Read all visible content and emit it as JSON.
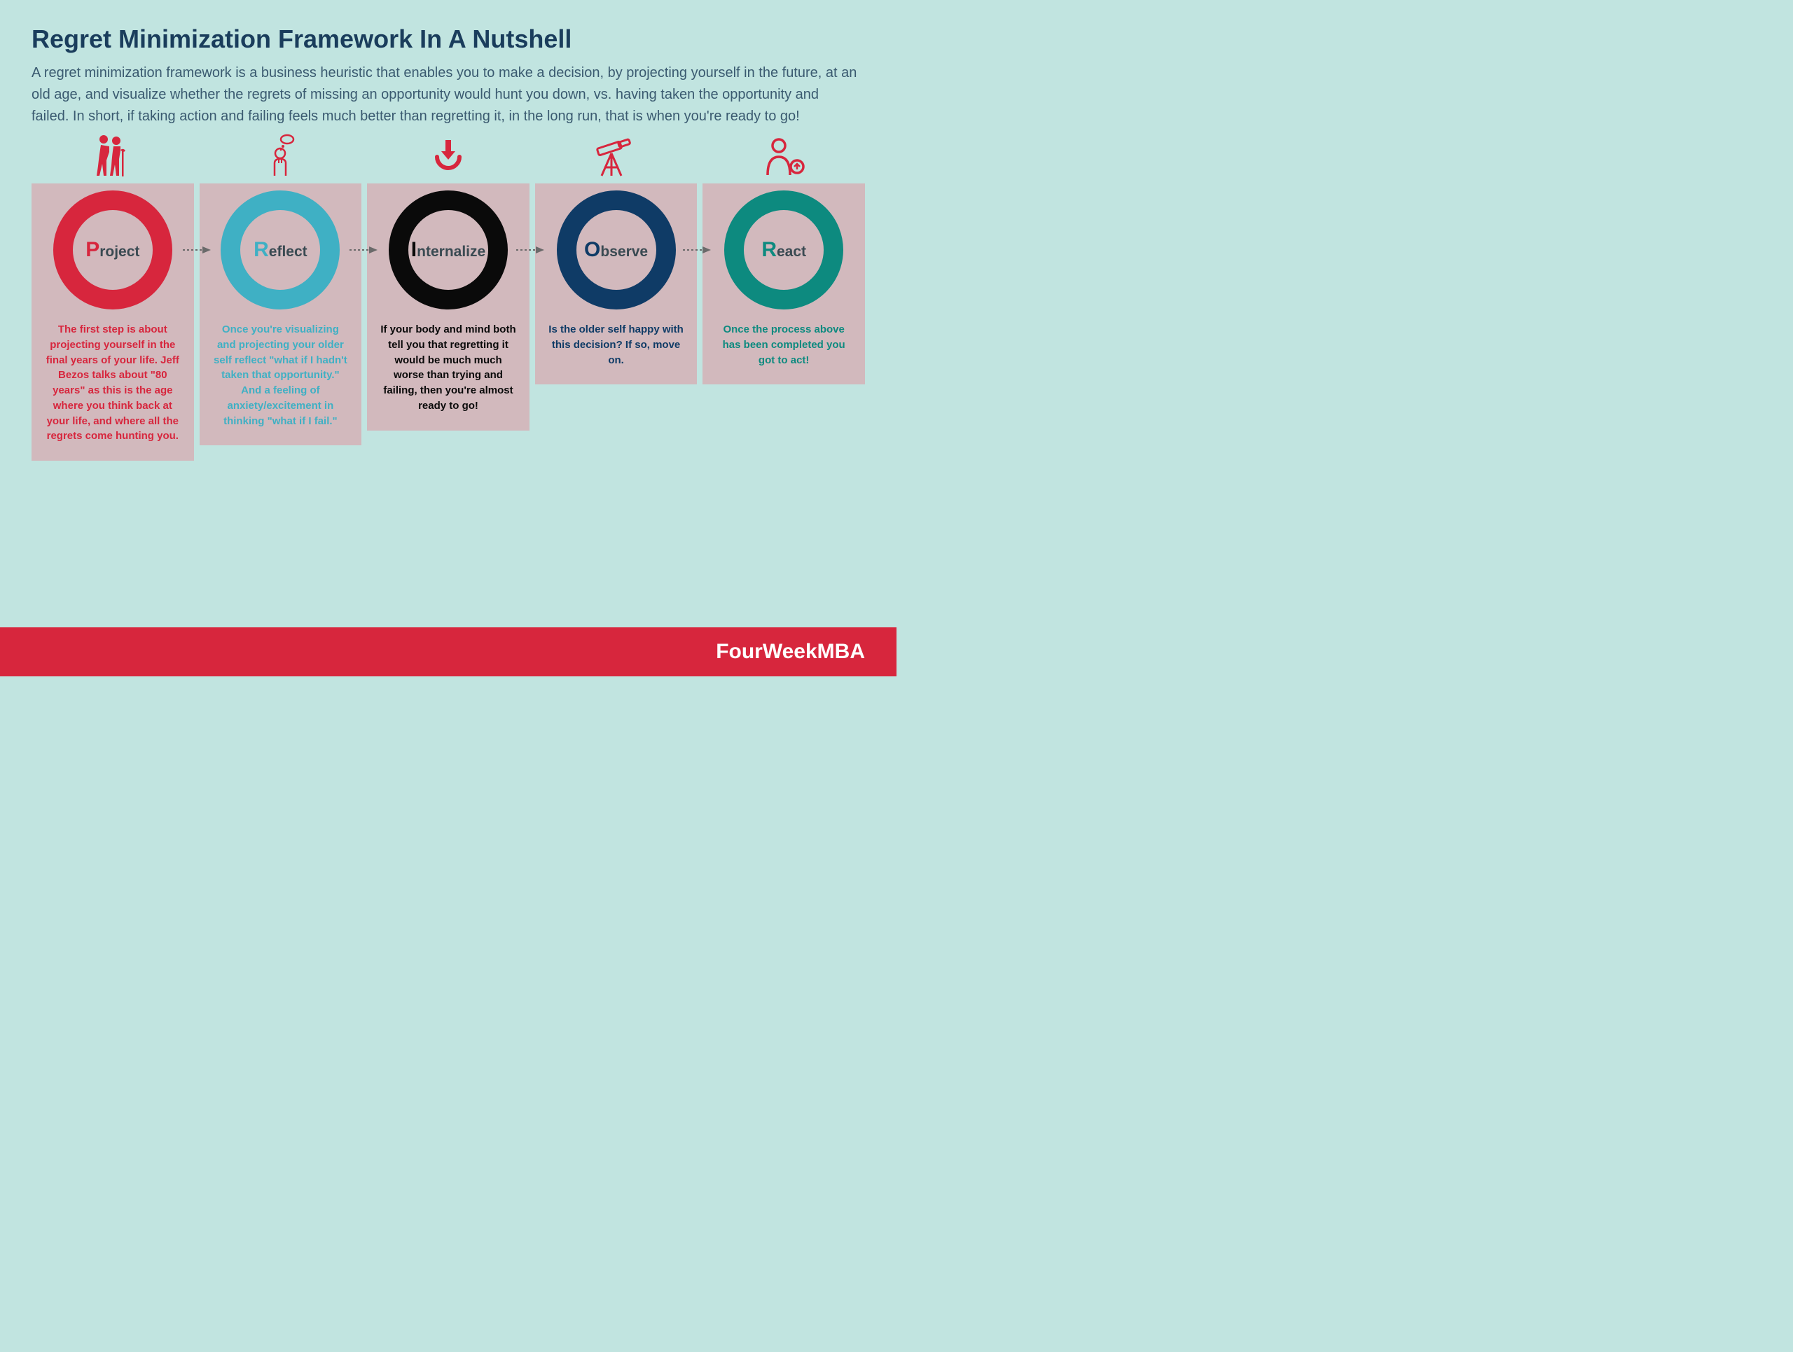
{
  "title": "Regret Minimization Framework In A Nutshell",
  "subtitle": "A regret minimization framework is a business heuristic that enables you to make a decision, by projecting yourself in the future, at an old age, and visualize whether the regrets of missing an opportunity would hunt you down, vs. having taken the opportunity and failed. In short, if taking action and failing feels much better than regretting it, in the long run, that is when you're ready to go!",
  "footer": "FourWeekMBA",
  "colors": {
    "background": "#c1e4e0",
    "title": "#1a3d5c",
    "subtitle": "#3a5a70",
    "card_bg": "#d2b9bd",
    "footer_bg": "#d7263d",
    "footer_text": "#ffffff",
    "icon": "#d7263d",
    "arrow": "#6a6a6a"
  },
  "steps": [
    {
      "letter": "P",
      "rest": "roject",
      "ring_color": "#d7263d",
      "text_color": "#d7263d",
      "icon": "elderly-couple",
      "desc": "The first step is about projecting yourself in the final years of your life. Jeff Bezos talks about \"80 years\" as this is the age where you think back at your life, and where all the regrets come hunting you."
    },
    {
      "letter": "R",
      "rest": "eflect",
      "ring_color": "#3fb0c4",
      "text_color": "#3fb0c4",
      "icon": "thinking-person",
      "desc": "Once you're visualizing and projecting your older self reflect \"what if I hadn't taken that opportunity.\" And a feeling of anxiety/excitement in thinking \"what if I fail.\""
    },
    {
      "letter": "I",
      "rest": "nternalize",
      "ring_color": "#0a0a0a",
      "text_color": "#0a0a0a",
      "icon": "down-arrow-circle",
      "desc": "If your body and mind both tell you that regretting it would be much much worse than trying and failing, then you're almost ready to go!"
    },
    {
      "letter": "O",
      "rest": "bserve",
      "ring_color": "#0f3b66",
      "text_color": "#0f3b66",
      "icon": "telescope",
      "desc": "Is the older self happy with this decision? If so, move on."
    },
    {
      "letter": "R",
      "rest": "eact",
      "ring_color": "#0d8a7f",
      "text_color": "#0d8a7f",
      "icon": "person-up",
      "desc": "Once the process above has been completed you got to act!"
    }
  ]
}
